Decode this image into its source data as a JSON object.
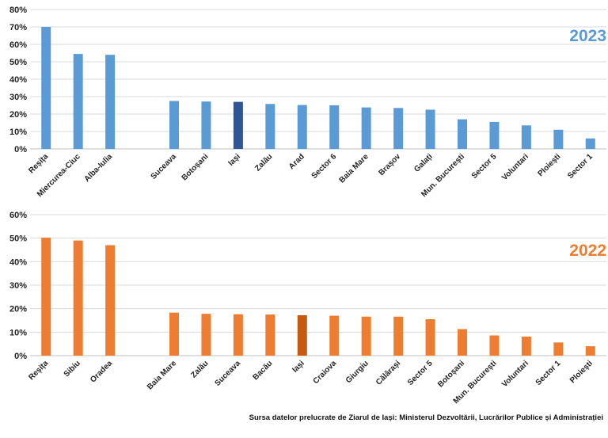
{
  "chart_data": [
    {
      "type": "bar",
      "title": "2023",
      "ylim": [
        0,
        80
      ],
      "yticks": [
        "0%",
        "10%",
        "20%",
        "30%",
        "40%",
        "50%",
        "60%",
        "70%",
        "80%"
      ],
      "grid": true,
      "categories": [
        "Reșița",
        "Miercurea-Ciuc",
        "Alba-Iulia",
        "",
        "Suceava",
        "Botoșani",
        "Iași",
        "Zalău",
        "Arad",
        "Sector 6",
        "Baia Mare",
        "Brașov",
        "Galați",
        "Mun. București",
        "Sector 5",
        "Voluntari",
        "Ploiești",
        "Sector 1"
      ],
      "values": [
        70,
        54.5,
        54,
        null,
        27.5,
        27.2,
        27,
        25.8,
        25.2,
        25,
        23.8,
        23.5,
        22.5,
        17,
        15.5,
        13.5,
        11,
        6
      ],
      "highlight": "Iași"
    },
    {
      "type": "bar",
      "title": "2022",
      "ylim": [
        0,
        60
      ],
      "yticks": [
        "0%",
        "10%",
        "20%",
        "30%",
        "40%",
        "50%",
        "60%"
      ],
      "grid": true,
      "categories": [
        "Reșița",
        "Sibiu",
        "Oradea",
        "",
        "Baia Mare",
        "Zalău",
        "Suceava",
        "Bacău",
        "Iași",
        "Craiova",
        "Giurgiu",
        "Călărași",
        "Sector 5",
        "Botoșani",
        "Mun. București",
        "Voluntari",
        "Sector 1",
        "Ploiești"
      ],
      "values": [
        50.2,
        49,
        47,
        null,
        18.3,
        17.8,
        17.6,
        17.5,
        17.2,
        17,
        16.6,
        16.6,
        15.5,
        11.3,
        8.6,
        8.1,
        5.6,
        4
      ],
      "highlight": "Iași"
    }
  ],
  "colors": {
    "bar_2023": "#5b9bd5",
    "highlight_2023": "#2f5597",
    "bar_2022": "#ed7d31",
    "highlight_2022": "#c55a11",
    "title_2023": "#5b9bd5",
    "title_2022": "#ed7d31"
  },
  "source": "Sursa datelor prelucrate de Ziarul de Iași: Ministerul Dezvoltării, Lucrărilor Publice și Administrației"
}
